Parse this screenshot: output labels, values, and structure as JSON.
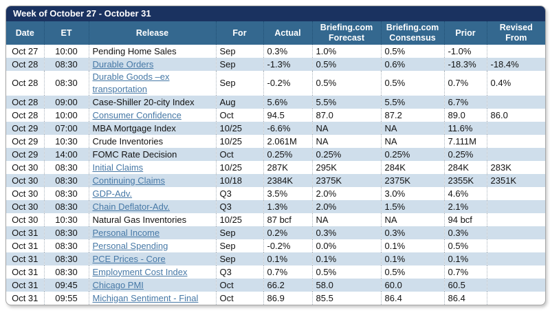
{
  "colors": {
    "title_bar": "#1A3260",
    "column_header": "#34688F",
    "row_shaded": "#CFDEEB",
    "link": "#4678A6"
  },
  "chart_data": {
    "type": "table",
    "title": "Week of October 27 - October 31",
    "columns": [
      {
        "key": "date",
        "label": "Date"
      },
      {
        "key": "et",
        "label": "ET"
      },
      {
        "key": "release",
        "label": "Release"
      },
      {
        "key": "for",
        "label": "For"
      },
      {
        "key": "actual",
        "label": "Actual"
      },
      {
        "key": "forecast",
        "label": "Briefing.com Forecast"
      },
      {
        "key": "consensus",
        "label": "Briefing.com Consensus"
      },
      {
        "key": "prior",
        "label": "Prior"
      },
      {
        "key": "revised",
        "label": "Revised From"
      }
    ],
    "rows": [
      {
        "date": "Oct 27",
        "et": "10:00",
        "release": "Pending Home Sales",
        "link": false,
        "for": "Sep",
        "actual": "0.3%",
        "forecast": "1.0%",
        "consensus": "0.5%",
        "prior": "-1.0%",
        "revised": ""
      },
      {
        "date": "Oct 28",
        "et": "08:30",
        "release": "Durable Orders",
        "link": true,
        "for": "Sep",
        "actual": "-1.3%",
        "forecast": "0.5%",
        "consensus": "0.6%",
        "prior": "-18.3%",
        "revised": "-18.4%"
      },
      {
        "date": "Oct 28",
        "et": "08:30",
        "release": "Durable Goods –ex transportation",
        "link": true,
        "for": "Sep",
        "actual": "-0.2%",
        "forecast": "0.5%",
        "consensus": "0.5%",
        "prior": "0.7%",
        "revised": "0.4%"
      },
      {
        "date": "Oct 28",
        "et": "09:00",
        "release": "Case-Shiller 20-city Index",
        "link": false,
        "for": "Aug",
        "actual": "5.6%",
        "forecast": "5.5%",
        "consensus": "5.5%",
        "prior": "6.7%",
        "revised": ""
      },
      {
        "date": "Oct 28",
        "et": "10:00",
        "release": "Consumer Confidence",
        "link": true,
        "for": "Oct",
        "actual": "94.5",
        "forecast": "87.0",
        "consensus": "87.2",
        "prior": "89.0",
        "revised": "86.0"
      },
      {
        "date": "Oct 29",
        "et": "07:00",
        "release": "MBA Mortgage Index",
        "link": false,
        "for": "10/25",
        "actual": "-6.6%",
        "forecast": "NA",
        "consensus": "NA",
        "prior": "11.6%",
        "revised": ""
      },
      {
        "date": "Oct 29",
        "et": "10:30",
        "release": "Crude Inventories",
        "link": false,
        "for": "10/25",
        "actual": "2.061M",
        "forecast": "NA",
        "consensus": "NA",
        "prior": "7.111M",
        "revised": ""
      },
      {
        "date": "Oct 29",
        "et": "14:00",
        "release": "FOMC Rate Decision",
        "link": false,
        "for": "Oct",
        "actual": "0.25%",
        "forecast": "0.25%",
        "consensus": "0.25%",
        "prior": "0.25%",
        "revised": ""
      },
      {
        "date": "Oct 30",
        "et": "08:30",
        "release": "Initial Claims",
        "link": true,
        "for": "10/25",
        "actual": "287K",
        "forecast": "295K",
        "consensus": "284K",
        "prior": "284K",
        "revised": "283K"
      },
      {
        "date": "Oct 30",
        "et": "08:30",
        "release": "Continuing Claims",
        "link": true,
        "for": "10/18",
        "actual": "2384K",
        "forecast": "2375K",
        "consensus": "2375K",
        "prior": "2355K",
        "revised": "2351K"
      },
      {
        "date": "Oct 30",
        "et": "08:30",
        "release": "GDP-Adv.",
        "link": true,
        "for": "Q3",
        "actual": "3.5%",
        "forecast": "2.0%",
        "consensus": "3.0%",
        "prior": "4.6%",
        "revised": ""
      },
      {
        "date": "Oct 30",
        "et": "08:30",
        "release": "Chain Deflator-Adv.",
        "link": true,
        "for": "Q3",
        "actual": "1.3%",
        "forecast": "2.0%",
        "consensus": "1.5%",
        "prior": "2.1%",
        "revised": ""
      },
      {
        "date": "Oct 30",
        "et": "10:30",
        "release": "Natural Gas Inventories",
        "link": false,
        "for": "10/25",
        "actual": "87 bcf",
        "forecast": "NA",
        "consensus": "NA",
        "prior": "94 bcf",
        "revised": ""
      },
      {
        "date": "Oct 31",
        "et": "08:30",
        "release": "Personal Income",
        "link": true,
        "for": "Sep",
        "actual": "0.2%",
        "forecast": "0.3%",
        "consensus": "0.3%",
        "prior": "0.3%",
        "revised": ""
      },
      {
        "date": "Oct 31",
        "et": "08:30",
        "release": "Personal Spending",
        "link": true,
        "for": "Sep",
        "actual": "-0.2%",
        "forecast": "0.0%",
        "consensus": "0.1%",
        "prior": "0.5%",
        "revised": ""
      },
      {
        "date": "Oct 31",
        "et": "08:30",
        "release": "PCE Prices - Core",
        "link": true,
        "for": "Sep",
        "actual": "0.1%",
        "forecast": "0.1%",
        "consensus": "0.1%",
        "prior": "0.1%",
        "revised": ""
      },
      {
        "date": "Oct 31",
        "et": "08:30",
        "release": "Employment Cost Index",
        "link": true,
        "for": "Q3",
        "actual": "0.7%",
        "forecast": "0.5%",
        "consensus": "0.5%",
        "prior": "0.7%",
        "revised": ""
      },
      {
        "date": "Oct 31",
        "et": "09:45",
        "release": "Chicago PMI",
        "link": true,
        "for": "Oct",
        "actual": "66.2",
        "forecast": "58.0",
        "consensus": "60.0",
        "prior": "60.5",
        "revised": ""
      },
      {
        "date": "Oct 31",
        "et": "09:55",
        "release": "Michigan Sentiment - Final",
        "link": true,
        "for": "Oct",
        "actual": "86.9",
        "forecast": "85.5",
        "consensus": "86.4",
        "prior": "86.4",
        "revised": ""
      }
    ]
  }
}
